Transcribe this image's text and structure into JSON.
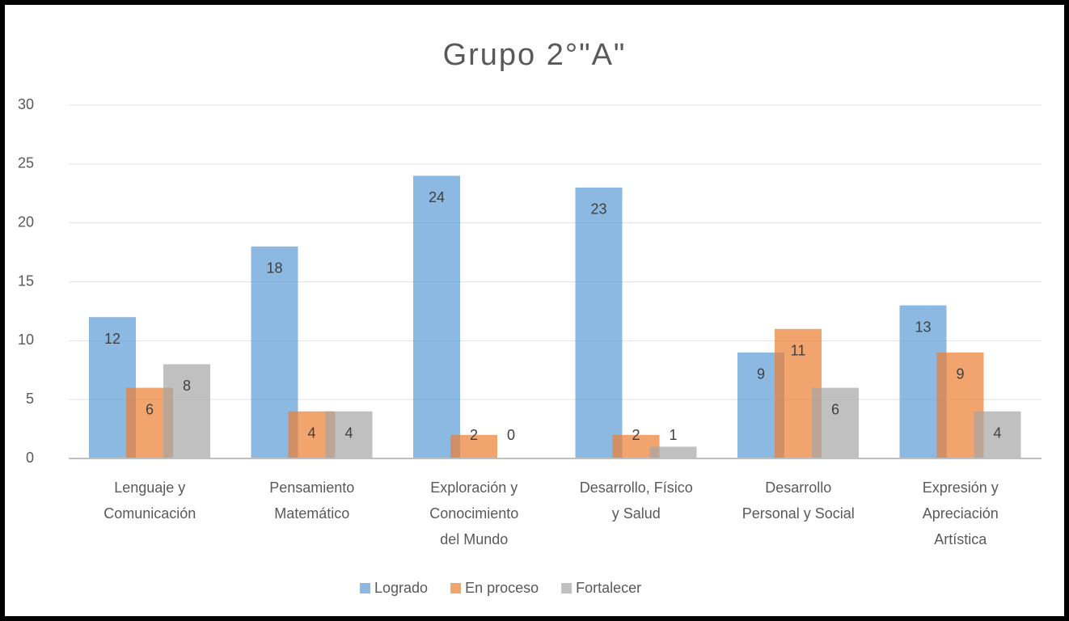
{
  "chart_data": {
    "type": "bar",
    "title": "Grupo 2°\"A\"",
    "categories": [
      [
        "Lenguaje y",
        "Comunicación"
      ],
      [
        "Pensamiento",
        "Matemático"
      ],
      [
        "Exploración y",
        "Conocimiento",
        "del Mundo"
      ],
      [
        "Desarrollo, Físico",
        "y Salud"
      ],
      [
        "Desarrollo",
        "Personal y Social"
      ],
      [
        "Expresión y",
        "Apreciación",
        "Artística"
      ]
    ],
    "series": [
      {
        "name": "Logrado",
        "color": "#5b9bd5",
        "values": [
          12,
          18,
          24,
          23,
          9,
          13
        ]
      },
      {
        "name": "En proceso",
        "color": "#ed7d31",
        "values": [
          6,
          4,
          2,
          2,
          11,
          9
        ]
      },
      {
        "name": "Fortalecer",
        "color": "#a5a5a5",
        "values": [
          8,
          4,
          0,
          1,
          6,
          4
        ]
      }
    ],
    "ylim": [
      0,
      30
    ],
    "yticks": [
      0,
      5,
      10,
      15,
      20,
      25,
      30
    ],
    "grid": true,
    "legend": "bottom"
  }
}
